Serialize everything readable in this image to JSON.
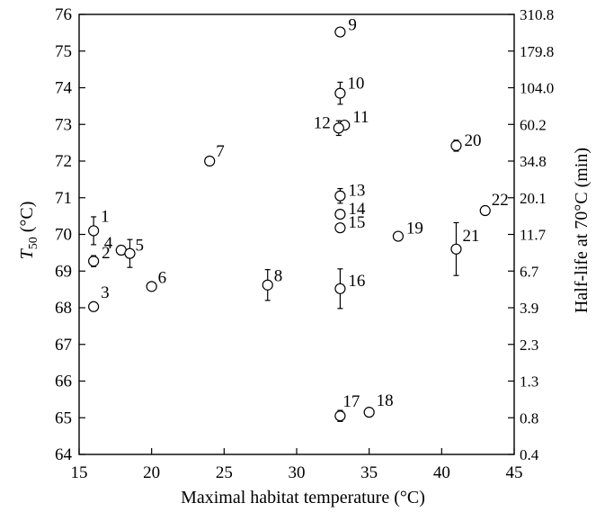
{
  "chart_data": {
    "type": "scatter",
    "xlabel": "Maximal habitat temperature (°C)",
    "ylabel_left_main": "T",
    "ylabel_left_sub": "50",
    "ylabel_left_unit": " (°C)",
    "ylabel_right": "Half-life at 70°C (min)",
    "xlim": [
      15,
      45
    ],
    "ylim": [
      64,
      76
    ],
    "x_ticks": [
      "15",
      "20",
      "25",
      "30",
      "35",
      "40",
      "45"
    ],
    "y_ticks": [
      "64",
      "65",
      "66",
      "67",
      "68",
      "69",
      "70",
      "71",
      "72",
      "73",
      "74",
      "75",
      "76"
    ],
    "y_right_ticks": [
      "0.4",
      "0.8",
      "1.3",
      "2.3",
      "3.9",
      "6.7",
      "11.7",
      "20.1",
      "34.8",
      "60.2",
      "104.0",
      "179.8",
      "310.8"
    ],
    "grid": false,
    "points": [
      {
        "label": "1",
        "x": 16.0,
        "y": 70.1,
        "err": 0.38
      },
      {
        "label": "2",
        "x": 16.0,
        "y": 69.27,
        "err": 0.15
      },
      {
        "label": "3",
        "x": 16.0,
        "y": 68.03,
        "err": 0.0
      },
      {
        "label": "4",
        "x": 17.9,
        "y": 69.57,
        "err": 0.12
      },
      {
        "label": "5",
        "x": 18.5,
        "y": 69.48,
        "err": 0.38
      },
      {
        "label": "6",
        "x": 20.0,
        "y": 68.58,
        "err": 0.0
      },
      {
        "label": "7",
        "x": 24.0,
        "y": 72.0,
        "err": 0.0
      },
      {
        "label": "8",
        "x": 28.0,
        "y": 68.62,
        "err": 0.42
      },
      {
        "label": "9",
        "x": 33.0,
        "y": 75.52,
        "err": 0.0
      },
      {
        "label": "10",
        "x": 33.0,
        "y": 73.85,
        "err": 0.3
      },
      {
        "label": "11",
        "x": 33.3,
        "y": 72.98,
        "err": 0.0
      },
      {
        "label": "12",
        "x": 32.9,
        "y": 72.9,
        "err": 0.2
      },
      {
        "label": "13",
        "x": 33.0,
        "y": 71.05,
        "err": 0.2
      },
      {
        "label": "14",
        "x": 33.0,
        "y": 70.55,
        "err": 0.0
      },
      {
        "label": "15",
        "x": 33.0,
        "y": 70.18,
        "err": 0.0
      },
      {
        "label": "16",
        "x": 33.0,
        "y": 68.52,
        "err": 0.54
      },
      {
        "label": "17",
        "x": 33.0,
        "y": 65.05,
        "err": 0.15
      },
      {
        "label": "18",
        "x": 35.0,
        "y": 65.15,
        "err": 0.0
      },
      {
        "label": "19",
        "x": 37.0,
        "y": 69.95,
        "err": 0.0
      },
      {
        "label": "20",
        "x": 41.0,
        "y": 72.42,
        "err": 0.15
      },
      {
        "label": "21",
        "x": 41.0,
        "y": 69.6,
        "err": 0.72
      },
      {
        "label": "22",
        "x": 43.0,
        "y": 70.65,
        "err": 0.0
      }
    ]
  }
}
